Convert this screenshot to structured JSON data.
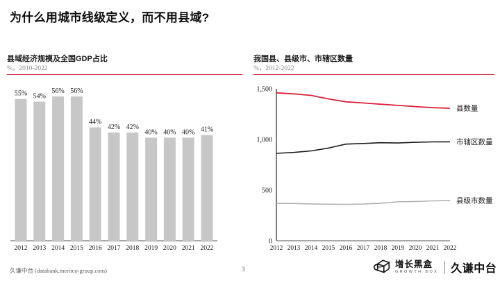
{
  "page": {
    "title": "为什么用城市线级定义，而不用县域?",
    "footer": {
      "source": "久谦中台 (databank.meritco-group.com)",
      "page_number": "3",
      "logo": {
        "brand": "增长黑盒",
        "brand_sub": "GROWTH BOX",
        "partner": "久谦中台",
        "box_icon": "growth-box-logo-icon"
      }
    }
  },
  "colors": {
    "accent_red": "#d7213a",
    "bar_gray": "#c7c7c7",
    "axis_gray": "#8c8c8c",
    "axis_dark": "#2a2a2a",
    "line_black": "#1a1a1a",
    "line_gray": "#a9a9a9"
  },
  "chart_data": [
    {
      "type": "bar",
      "title": "县域经济规模及全国GDP占比",
      "subtitle": "%，2010-2022",
      "categories": [
        "2012",
        "2013",
        "2014",
        "2015",
        "2016",
        "2017",
        "2018",
        "2019",
        "2020",
        "2021",
        "2022"
      ],
      "values": [
        55,
        54,
        56,
        56,
        44,
        42,
        42,
        40,
        40,
        40,
        41
      ],
      "value_labels": [
        "55%",
        "54%",
        "56%",
        "56%",
        "44%",
        "42%",
        "42%",
        "40%",
        "40%",
        "40%",
        "41%"
      ],
      "xlabel": "",
      "ylabel": "",
      "ylim": [
        0,
        56
      ],
      "grid": false,
      "legend": "none",
      "bar_color": "#c7c7c7"
    },
    {
      "type": "line",
      "title": "我国县、县级市、市辖区数量",
      "subtitle": "%，2012-2022",
      "x": [
        "2012",
        "2013",
        "2014",
        "2015",
        "2016",
        "2017",
        "2018",
        "2019",
        "2020",
        "2021",
        "2022"
      ],
      "series": [
        {
          "name": "县数量",
          "color": "#d7213a",
          "width": 1.8,
          "values": [
            1460,
            1450,
            1435,
            1400,
            1372,
            1360,
            1348,
            1336,
            1325,
            1314,
            1308
          ]
        },
        {
          "name": "市辖区数量",
          "color": "#1a1a1a",
          "width": 1.6,
          "values": [
            863,
            872,
            887,
            915,
            954,
            960,
            968,
            965,
            972,
            976,
            977
          ]
        },
        {
          "name": "县级市数量",
          "color": "#a9a9a9",
          "width": 1.4,
          "values": [
            370,
            368,
            363,
            361,
            360,
            362,
            370,
            385,
            388,
            393,
            397
          ]
        }
      ],
      "yticks": [
        {
          "value": 0,
          "label": "0"
        },
        {
          "value": 500,
          "label": "500"
        },
        {
          "value": 1000,
          "label": "1,000"
        },
        {
          "value": 1500,
          "label": "1,500"
        }
      ],
      "ylim": [
        0,
        1500
      ],
      "grid": false,
      "legend": "inline-right"
    }
  ]
}
